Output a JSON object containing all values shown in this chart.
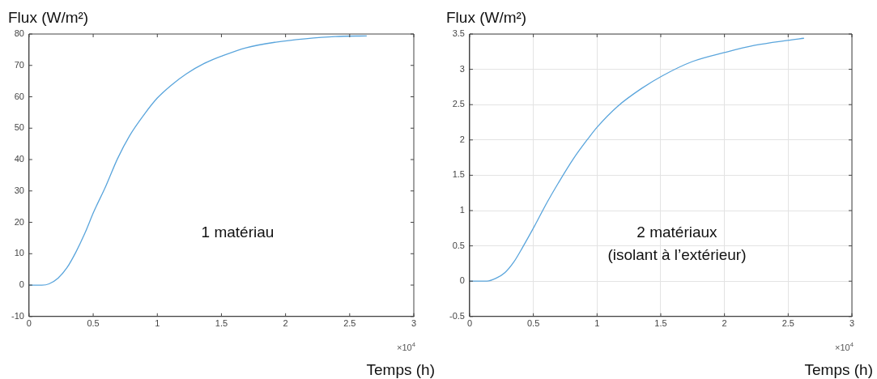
{
  "chart_data": [
    {
      "type": "line",
      "xlabel": "Temps (h)",
      "ylabel": "Flux (W/m²)",
      "annotations": [
        "1 matériau",
        "×10$^{4}$"
      ],
      "x": [
        0,
        0.1,
        0.156,
        0.226,
        0.295,
        0.365,
        0.435,
        0.505,
        0.598,
        0.69,
        0.784,
        0.9,
        1.0,
        1.109,
        1.226,
        1.365,
        1.505,
        1.69,
        1.923,
        2.156,
        2.388,
        2.633
      ],
      "series": [
        {
          "color": "#5aa5dc",
          "values": [
            0,
            0,
            0.4,
            2.2,
            5.5,
            10.5,
            16.5,
            23.4,
            31.5,
            40.3,
            47.6,
            54.5,
            59.6,
            63.7,
            67.3,
            70.6,
            73.0,
            75.6,
            77.4,
            78.5,
            79.2,
            79.4
          ]
        }
      ],
      "xlim": [
        0,
        3
      ],
      "xticks": [
        0,
        0.5,
        1,
        1.5,
        2,
        2.5,
        3
      ],
      "ylim": [
        -10,
        80
      ],
      "yticks": [
        -10,
        0,
        10,
        20,
        30,
        40,
        50,
        60,
        70,
        80
      ],
      "grid": false,
      "marker": "none",
      "line_style": "solid"
    },
    {
      "type": "line",
      "xlabel": "Temps (h)",
      "ylabel": "Flux (W/m²)",
      "annotations": [
        "2 matériaux\n(isolant à l’extérieur)",
        "×10$^{4}$"
      ],
      "x": [
        0,
        0.1355,
        0.206,
        0.276,
        0.346,
        0.416,
        0.509,
        0.603,
        0.696,
        0.813,
        0.93,
        1.0,
        1.164,
        1.35,
        1.514,
        1.748,
        2.005,
        2.238,
        2.495,
        2.624
      ],
      "series": [
        {
          "color": "#5aa5dc",
          "values": [
            0,
            0,
            0.04,
            0.12,
            0.27,
            0.48,
            0.78,
            1.1,
            1.39,
            1.73,
            2.02,
            2.18,
            2.48,
            2.73,
            2.91,
            3.11,
            3.24,
            3.34,
            3.41,
            3.44
          ]
        }
      ],
      "xlim": [
        0,
        3
      ],
      "xticks": [
        0,
        0.5,
        1,
        1.5,
        2,
        2.5,
        3
      ],
      "ylim": [
        -0.5,
        3.5
      ],
      "yticks": [
        -0.5,
        0,
        0.5,
        1,
        1.5,
        2,
        2.5,
        3,
        3.5
      ],
      "grid": true,
      "marker": "none",
      "line_style": "solid"
    }
  ]
}
